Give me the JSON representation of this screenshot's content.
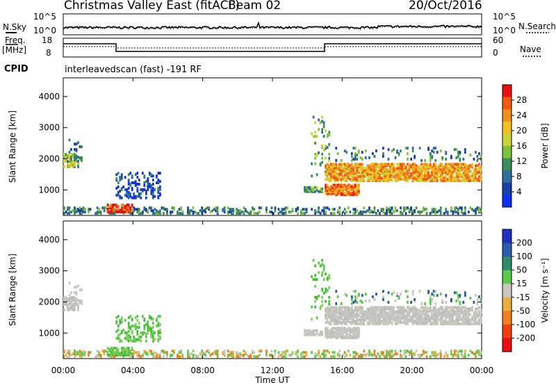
{
  "header": {
    "radar": "Christmas Valley East (fitACF)",
    "beam": "Beam 02",
    "date": "20/Oct/2016"
  },
  "panels": {
    "nsky_label": "N.Sky",
    "nsearch_label": "N.Search",
    "noise_ticks_left": [
      "10^5",
      "10^0"
    ],
    "noise_ticks_right": [
      "10^5",
      "10^0"
    ],
    "freq_label_1": "Freq.",
    "freq_label_2": "[MHz]",
    "freq_ticks": [
      "18",
      "8"
    ],
    "nave_label": "Nave",
    "nave_ticks": [
      "60",
      "0"
    ],
    "cpid_label": "CPID",
    "cpid_text": "interleavedscan (fast) -191 RF"
  },
  "chart_data": [
    {
      "type": "heatmap",
      "name": "power",
      "ylabel": "Slant Range [km]",
      "xlabel": "Time UT",
      "x_ticks": [
        "00:00",
        "04:00",
        "08:00",
        "12:00",
        "16:00",
        "20:00",
        "00:00"
      ],
      "y_ticks": [
        1000,
        2000,
        3000,
        4000
      ],
      "ylim": [
        180,
        4600
      ],
      "colorbar": {
        "label": "Power [dB]",
        "ticks": [
          "4",
          "8",
          "12",
          "16",
          "20",
          "24",
          "28"
        ],
        "colors": [
          "#1030f0",
          "#1d3fa8",
          "#2e6e9c",
          "#3c8c5a",
          "#7cc23c",
          "#c8d43c",
          "#f0c020",
          "#f09020",
          "#f05a10",
          "#e81010"
        ]
      }
    },
    {
      "type": "heatmap",
      "name": "velocity",
      "ylabel": "Slant Range [km]",
      "xlabel": "Time UT",
      "x_ticks": [
        "00:00",
        "04:00",
        "08:00",
        "12:00",
        "16:00",
        "20:00",
        "00:00"
      ],
      "y_ticks": [
        1000,
        2000,
        3000,
        4000
      ],
      "ylim": [
        180,
        4600
      ],
      "colorbar": {
        "label": "Velocity [m s⁻¹]",
        "ticks": [
          "200",
          "100",
          "50",
          "15",
          "-15",
          "-50",
          "-100",
          "-200"
        ],
        "colors": [
          "#2030c0",
          "#2e5aa8",
          "#2e8a6a",
          "#5ac84a",
          "#c8c8c0",
          "#e8b040",
          "#f08020",
          "#f04010",
          "#e81010"
        ]
      }
    }
  ],
  "xaxis_title": "Time UT"
}
